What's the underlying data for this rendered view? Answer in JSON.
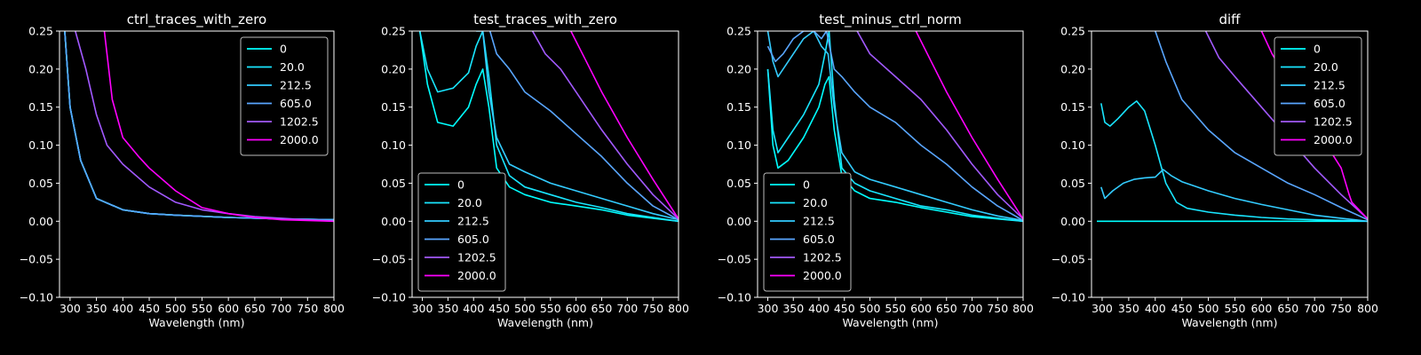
{
  "chart_data": [
    {
      "type": "line",
      "title": "ctrl_traces_with_zero",
      "xlabel": "Wavelength (nm)",
      "ylabel": "",
      "xlim": [
        280,
        800
      ],
      "ylim": [
        -0.1,
        0.25
      ],
      "xticks": [
        "300",
        "350",
        "400",
        "450",
        "500",
        "550",
        "600",
        "650",
        "700",
        "750",
        "800"
      ],
      "yticks": [
        "−0.10",
        "−0.05",
        "0.00",
        "0.05",
        "0.10",
        "0.15",
        "0.20",
        "0.25"
      ],
      "legend": "top-right",
      "series": [
        {
          "name": "0",
          "color": "#00ffff",
          "x": [
            290,
            300,
            320,
            350,
            400,
            450,
            500,
            600,
            700,
            800
          ],
          "y": [
            0.25,
            0.15,
            0.08,
            0.03,
            0.015,
            0.01,
            0.008,
            0.005,
            0.003,
            0.002
          ]
        },
        {
          "name": "20.0",
          "color": "#19e6ff",
          "x": [
            290,
            300,
            320,
            350,
            400,
            450,
            500,
            600,
            700,
            800
          ],
          "y": [
            0.25,
            0.15,
            0.08,
            0.03,
            0.015,
            0.01,
            0.008,
            0.005,
            0.003,
            0.002
          ]
        },
        {
          "name": "212.5",
          "color": "#33ccff",
          "x": [
            290,
            300,
            320,
            350,
            400,
            450,
            500,
            600,
            700,
            800
          ],
          "y": [
            0.25,
            0.15,
            0.08,
            0.03,
            0.015,
            0.01,
            0.008,
            0.005,
            0.003,
            0.002
          ]
        },
        {
          "name": "605.0",
          "color": "#59a6ff",
          "x": [
            290,
            300,
            320,
            350,
            400,
            450,
            500,
            600,
            700,
            800
          ],
          "y": [
            0.25,
            0.15,
            0.08,
            0.03,
            0.015,
            0.01,
            0.008,
            0.005,
            0.003,
            0.002
          ]
        },
        {
          "name": "1202.5",
          "color": "#a259ff",
          "x": [
            310,
            330,
            350,
            370,
            400,
            450,
            500,
            550,
            600,
            650,
            700,
            800
          ],
          "y": [
            0.25,
            0.2,
            0.14,
            0.1,
            0.075,
            0.045,
            0.025,
            0.015,
            0.01,
            0.006,
            0.004,
            0.0
          ]
        },
        {
          "name": "2000.0",
          "color": "#ff00ff",
          "x": [
            365,
            380,
            400,
            430,
            450,
            500,
            550,
            600,
            650,
            700,
            800
          ],
          "y": [
            0.25,
            0.16,
            0.11,
            0.085,
            0.07,
            0.04,
            0.018,
            0.01,
            0.005,
            0.002,
            0.0
          ]
        }
      ]
    },
    {
      "type": "line",
      "title": "test_traces_with_zero",
      "xlabel": "Wavelength (nm)",
      "ylabel": "",
      "xlim": [
        280,
        800
      ],
      "ylim": [
        -0.1,
        0.25
      ],
      "xticks": [
        "300",
        "350",
        "400",
        "450",
        "500",
        "550",
        "600",
        "650",
        "700",
        "750",
        "800"
      ],
      "yticks": [
        "−0.10",
        "−0.05",
        "0.00",
        "0.05",
        "0.10",
        "0.15",
        "0.20",
        "0.25"
      ],
      "legend": "lower-left",
      "series": [
        {
          "name": "0",
          "color": "#00ffff",
          "x": [
            295,
            310,
            330,
            360,
            390,
            405,
            418,
            430,
            445,
            470,
            500,
            550,
            600,
            650,
            700,
            750,
            800
          ],
          "y": [
            0.25,
            0.18,
            0.13,
            0.125,
            0.15,
            0.18,
            0.2,
            0.15,
            0.07,
            0.045,
            0.035,
            0.025,
            0.02,
            0.015,
            0.008,
            0.004,
            0.0
          ]
        },
        {
          "name": "20.0",
          "color": "#19e6ff",
          "x": [
            295,
            310,
            330,
            360,
            390,
            405,
            418,
            430,
            445,
            470,
            500,
            550,
            600,
            650,
            700,
            750,
            800
          ],
          "y": [
            0.25,
            0.2,
            0.17,
            0.175,
            0.195,
            0.23,
            0.25,
            0.19,
            0.1,
            0.06,
            0.045,
            0.035,
            0.025,
            0.018,
            0.01,
            0.005,
            0.0
          ]
        },
        {
          "name": "212.5",
          "color": "#33ccff",
          "x": [
            405,
            418,
            430,
            445,
            470,
            500,
            550,
            600,
            650,
            700,
            750,
            800
          ],
          "y": [
            0.25,
            0.25,
            0.17,
            0.11,
            0.075,
            0.065,
            0.05,
            0.04,
            0.03,
            0.02,
            0.01,
            0.002
          ]
        },
        {
          "name": "605.0",
          "color": "#59a6ff",
          "x": [
            432,
            445,
            470,
            500,
            550,
            600,
            650,
            700,
            750,
            800
          ],
          "y": [
            0.25,
            0.22,
            0.2,
            0.17,
            0.145,
            0.115,
            0.085,
            0.05,
            0.02,
            0.002
          ]
        },
        {
          "name": "1202.5",
          "color": "#a259ff",
          "x": [
            515,
            540,
            570,
            600,
            650,
            700,
            750,
            800
          ],
          "y": [
            0.25,
            0.22,
            0.2,
            0.17,
            0.12,
            0.075,
            0.035,
            0.003
          ]
        },
        {
          "name": "2000.0",
          "color": "#ff00ff",
          "x": [
            590,
            620,
            650,
            700,
            750,
            800
          ],
          "y": [
            0.25,
            0.21,
            0.17,
            0.11,
            0.055,
            0.003
          ]
        }
      ]
    },
    {
      "type": "line",
      "title": "test_minus_ctrl_norm",
      "xlabel": "Wavelength (nm)",
      "ylabel": "",
      "xlim": [
        280,
        800
      ],
      "ylim": [
        -0.1,
        0.25
      ],
      "xticks": [
        "300",
        "350",
        "400",
        "450",
        "500",
        "550",
        "600",
        "650",
        "700",
        "750",
        "800"
      ],
      "yticks": [
        "−0.10",
        "−0.05",
        "0.00",
        "0.05",
        "0.10",
        "0.15",
        "0.20",
        "0.25"
      ],
      "legend": "lower-left",
      "series": [
        {
          "name": "0",
          "color": "#00ffff",
          "x": [
            300,
            310,
            320,
            340,
            370,
            400,
            412,
            420,
            430,
            445,
            470,
            500,
            550,
            600,
            650,
            700,
            750,
            800
          ],
          "y": [
            0.2,
            0.1,
            0.07,
            0.08,
            0.11,
            0.15,
            0.18,
            0.19,
            0.12,
            0.06,
            0.04,
            0.03,
            0.025,
            0.018,
            0.012,
            0.006,
            0.003,
            0.0
          ]
        },
        {
          "name": "20.0",
          "color": "#19e6ff",
          "x": [
            300,
            310,
            320,
            340,
            370,
            400,
            412,
            420,
            430,
            445,
            470,
            500,
            550,
            600,
            650,
            700,
            750,
            800
          ],
          "y": [
            0.2,
            0.12,
            0.09,
            0.11,
            0.14,
            0.18,
            0.22,
            0.25,
            0.16,
            0.07,
            0.05,
            0.04,
            0.03,
            0.02,
            0.015,
            0.008,
            0.004,
            0.0
          ]
        },
        {
          "name": "212.5",
          "color": "#33ccff",
          "x": [
            300,
            310,
            320,
            340,
            370,
            390,
            405,
            418,
            430,
            445,
            470,
            500,
            550,
            600,
            650,
            700,
            750,
            800
          ],
          "y": [
            0.25,
            0.21,
            0.19,
            0.21,
            0.24,
            0.25,
            0.23,
            0.22,
            0.15,
            0.09,
            0.065,
            0.055,
            0.045,
            0.035,
            0.025,
            0.015,
            0.007,
            0.001
          ]
        },
        {
          "name": "605.0",
          "color": "#59a6ff",
          "x": [
            300,
            315,
            330,
            350,
            370,
            390,
            405,
            415,
            430,
            445,
            470,
            500,
            550,
            600,
            650,
            700,
            750,
            800
          ],
          "y": [
            0.23,
            0.21,
            0.22,
            0.24,
            0.25,
            0.25,
            0.24,
            0.25,
            0.2,
            0.19,
            0.17,
            0.15,
            0.13,
            0.1,
            0.075,
            0.045,
            0.02,
            0.001
          ]
        },
        {
          "name": "1202.5",
          "color": "#a259ff",
          "x": [
            475,
            500,
            550,
            600,
            650,
            700,
            750,
            800
          ],
          "y": [
            0.25,
            0.22,
            0.19,
            0.16,
            0.12,
            0.075,
            0.035,
            0.003
          ]
        },
        {
          "name": "2000.0",
          "color": "#ff00ff",
          "x": [
            590,
            620,
            650,
            700,
            750,
            800
          ],
          "y": [
            0.25,
            0.21,
            0.17,
            0.11,
            0.055,
            0.003
          ]
        }
      ]
    },
    {
      "type": "line",
      "title": "diff",
      "xlabel": "Wavelength (nm)",
      "ylabel": "",
      "xlim": [
        280,
        800
      ],
      "ylim": [
        -0.1,
        0.25
      ],
      "xticks": [
        "300",
        "350",
        "400",
        "450",
        "500",
        "550",
        "600",
        "650",
        "700",
        "750",
        "800"
      ],
      "yticks": [
        "−0.10",
        "−0.05",
        "0.00",
        "0.05",
        "0.10",
        "0.15",
        "0.20",
        "0.25"
      ],
      "legend": "top-right",
      "series": [
        {
          "name": "0",
          "color": "#00ffff",
          "x": [
            290,
            400,
            500,
            600,
            700,
            800
          ],
          "y": [
            0,
            0,
            0,
            0,
            0,
            0
          ]
        },
        {
          "name": "20.0",
          "color": "#19e6ff",
          "x": [
            298,
            305,
            315,
            330,
            350,
            365,
            380,
            400,
            420,
            440,
            460,
            500,
            550,
            600,
            650,
            700,
            750,
            800
          ],
          "y": [
            0.155,
            0.13,
            0.125,
            0.135,
            0.15,
            0.158,
            0.145,
            0.1,
            0.05,
            0.025,
            0.017,
            0.012,
            0.008,
            0.005,
            0.003,
            0.002,
            0.001,
            0.0
          ]
        },
        {
          "name": "212.5",
          "color": "#33ccff",
          "x": [
            298,
            305,
            320,
            340,
            360,
            380,
            400,
            415,
            430,
            450,
            500,
            550,
            600,
            650,
            700,
            750,
            800
          ],
          "y": [
            0.045,
            0.03,
            0.04,
            0.05,
            0.055,
            0.057,
            0.058,
            0.068,
            0.06,
            0.052,
            0.04,
            0.03,
            0.022,
            0.015,
            0.008,
            0.004,
            0.0
          ]
        },
        {
          "name": "605.0",
          "color": "#59a6ff",
          "x": [
            400,
            420,
            450,
            500,
            550,
            600,
            650,
            700,
            750,
            800
          ],
          "y": [
            0.25,
            0.21,
            0.16,
            0.12,
            0.09,
            0.07,
            0.05,
            0.035,
            0.018,
            0.002
          ]
        },
        {
          "name": "1202.5",
          "color": "#a259ff",
          "x": [
            495,
            520,
            550,
            600,
            650,
            700,
            750,
            800
          ],
          "y": [
            0.25,
            0.215,
            0.19,
            0.15,
            0.11,
            0.07,
            0.035,
            0.003
          ]
        },
        {
          "name": "2000.0",
          "color": "#ff00ff",
          "x": [
            600,
            620,
            650,
            700,
            750,
            765,
            770,
            800
          ],
          "y": [
            0.25,
            0.22,
            0.185,
            0.125,
            0.07,
            0.035,
            0.025,
            0.003
          ]
        }
      ]
    }
  ]
}
